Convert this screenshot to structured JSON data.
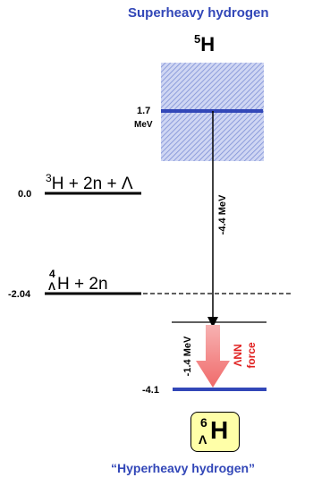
{
  "title": "Superheavy hydrogen",
  "nucleus_top": {
    "sup": "5",
    "sym": "H"
  },
  "levels": {
    "h5": {
      "value": "1.7",
      "unit": "MeV"
    },
    "zero": {
      "value": "0.0",
      "sup": "3",
      "formula": "H + 2n + Λ"
    },
    "mid": {
      "value": "-2.04",
      "sup": "4",
      "sub": "Λ",
      "formula": "H + 2n"
    },
    "bottom": {
      "value": "-4.1"
    }
  },
  "transitions": {
    "big": "-4.4 MeV",
    "small": "-1.4 MeV",
    "force_line1": "ΛNN",
    "force_line2": "force"
  },
  "nucleus_bottom": {
    "sup": "6",
    "sub": "Λ",
    "sym": "H"
  },
  "caption": "“Hyperheavy hydrogen”",
  "colors": {
    "blue": "#3247b8",
    "red": "#e02020",
    "pink": "#f38a8a",
    "hatch": "#7d8fd6",
    "box": "#ffffa8"
  }
}
